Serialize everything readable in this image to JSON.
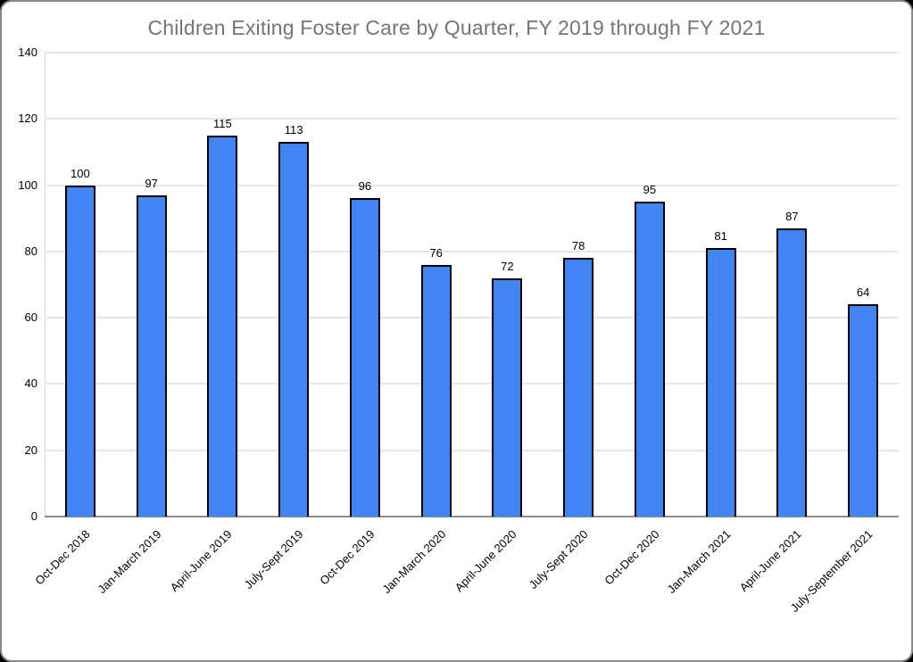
{
  "chart_data": {
    "type": "bar",
    "title": "Children Exiting Foster Care by Quarter, FY 2019 through FY 2021",
    "categories": [
      "Oct-Dec 2018",
      "Jan-March 2019",
      "April-June 2019",
      "July-Sept 2019",
      "Oct-Dec 2019",
      "Jan-March 2020",
      "April-June 2020",
      "July-Sept 2020",
      "Oct-Dec 2020",
      "Jan-March 2021",
      "April-June 2021",
      "July-September 2021"
    ],
    "values": [
      100,
      97,
      115,
      113,
      96,
      76,
      72,
      78,
      95,
      81,
      87,
      64
    ],
    "xlabel": "",
    "ylabel": "",
    "ylim": [
      0,
      140
    ],
    "yticks": [
      0,
      20,
      40,
      60,
      80,
      100,
      120,
      140
    ],
    "grid": true,
    "legend_position": "none",
    "value_labels_shown": true,
    "colors": {
      "bar_fill": "#4285f4",
      "bar_border": "#000000",
      "title_text": "#757575",
      "axis_text": "#000000",
      "gridline": "#e6e6e6",
      "baseline": "#8e8e8e",
      "card_background": "#ffffff",
      "outer_background": "#000000",
      "card_border": "#8a8a8a"
    }
  }
}
